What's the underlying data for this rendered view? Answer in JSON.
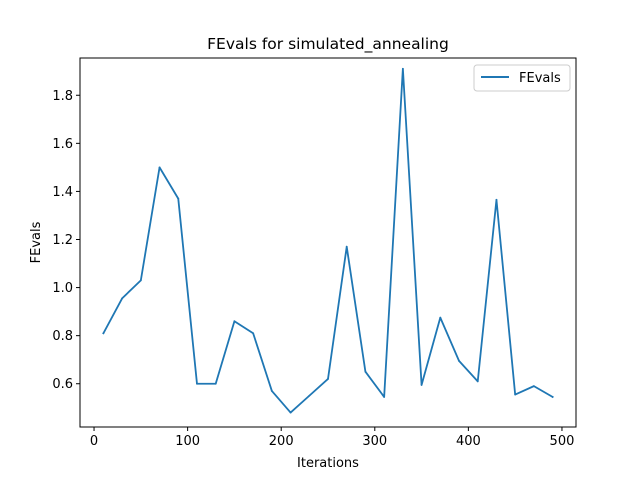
{
  "chart_data": {
    "type": "line",
    "title": "FEvals for simulated_annealing",
    "xlabel": "Iterations",
    "ylabel": "FEvals",
    "xlim": [
      -15,
      515
    ],
    "ylim": [
      0.42,
      1.955
    ],
    "xticks": [
      0,
      100,
      200,
      300,
      400,
      500
    ],
    "yticks": [
      0.6,
      0.8,
      1.0,
      1.2,
      1.4,
      1.6,
      1.8
    ],
    "ytick_labels": [
      "0.6",
      "0.8",
      "1.0",
      "1.2",
      "1.4",
      "1.6",
      "1.8"
    ],
    "grid": false,
    "legend_position": "top-right",
    "series": [
      {
        "name": "FEvals",
        "color": "#1f77b4",
        "x": [
          10,
          30,
          50,
          70,
          90,
          110,
          130,
          150,
          170,
          190,
          210,
          230,
          250,
          270,
          290,
          310,
          330,
          350,
          370,
          390,
          410,
          430,
          450,
          470,
          490
        ],
        "y": [
          0.81,
          0.955,
          1.03,
          1.5,
          1.37,
          0.6,
          0.6,
          0.86,
          0.81,
          0.57,
          0.48,
          0.55,
          0.62,
          1.17,
          0.65,
          0.545,
          1.91,
          0.595,
          0.875,
          0.695,
          0.61,
          1.365,
          0.555,
          0.59,
          0.545
        ]
      }
    ]
  }
}
